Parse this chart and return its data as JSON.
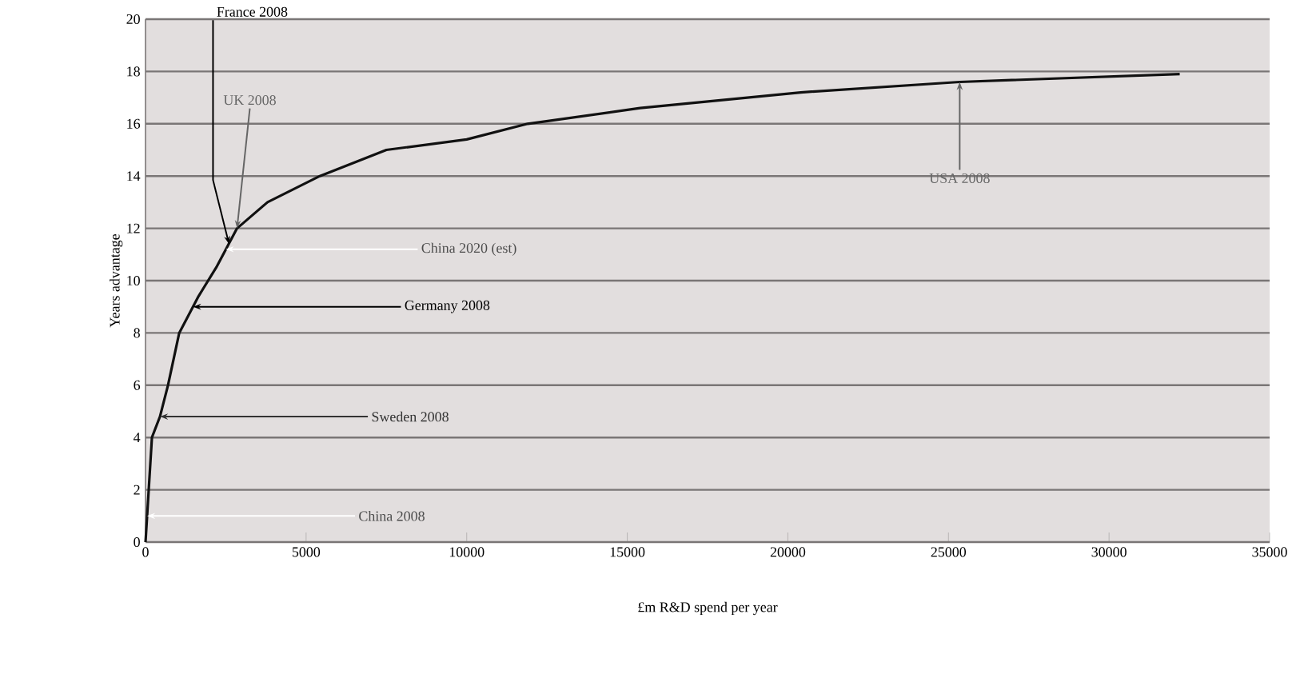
{
  "chart_data": {
    "type": "line",
    "xlabel": "£m R&D spend per year",
    "ylabel": "Years advantage",
    "x": [
      0,
      100,
      200,
      450,
      700,
      1050,
      1650,
      2200,
      2850,
      3800,
      5430,
      7500,
      10000,
      11900,
      15400,
      20400,
      25350,
      32200
    ],
    "series": [
      {
        "color": "#111111",
        "values": [
          0,
          2,
          4,
          4.8,
          6,
          8,
          9.4,
          10.5,
          12,
          13,
          14,
          15,
          15.4,
          16,
          16.6,
          17.2,
          17.6,
          17.9
        ]
      }
    ],
    "xlim": [
      0,
      35000
    ],
    "ylim": [
      0,
      20
    ],
    "xticks": [
      0,
      5000,
      10000,
      15000,
      20000,
      25000,
      30000,
      35000
    ],
    "yticks": [
      0,
      2,
      4,
      6,
      8,
      10,
      12,
      14,
      16,
      18,
      20
    ],
    "grid": "y",
    "marker": "none",
    "line_style": "solid",
    "annotations": [
      {
        "text": "France 2008",
        "x": 2600,
        "y": 11.4
      },
      {
        "text": "UK 2008",
        "x": 2850,
        "y": 12
      },
      {
        "text": "China 2020 (est)",
        "x": 2500,
        "y": 11.2
      },
      {
        "text": "Germany 2008",
        "x": 1480,
        "y": 9
      },
      {
        "text": "Sweden 2008",
        "x": 450,
        "y": 4.8
      },
      {
        "text": "China 2008",
        "x": 50,
        "y": 1
      },
      {
        "text": "USA 2008",
        "x": 25350,
        "y": 17.6
      }
    ]
  }
}
